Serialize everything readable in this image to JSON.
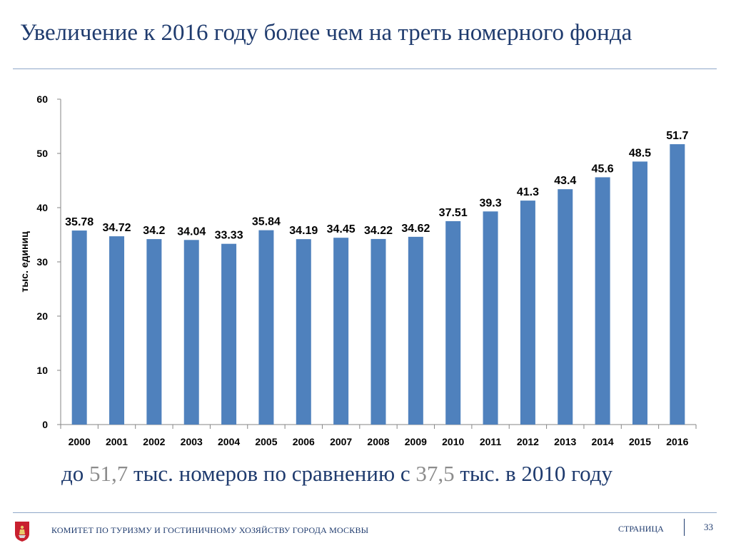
{
  "header": {
    "title": "Увеличение к 2016 году более чем на треть номерного фонда"
  },
  "chart_data": {
    "type": "bar",
    "ylabel": "тыс. единиц",
    "ylim": [
      0,
      60
    ],
    "yticks": [
      0,
      10,
      20,
      30,
      40,
      50,
      60
    ],
    "grid": false,
    "legend": "none",
    "bar_color": "#4F81BD",
    "categories": [
      "2000",
      "2001",
      "2002",
      "2003",
      "2004",
      "2005",
      "2006",
      "2007",
      "2008",
      "2009",
      "2010",
      "2011",
      "2012",
      "2013",
      "2014",
      "2015",
      "2016"
    ],
    "values": [
      35.78,
      34.72,
      34.2,
      34.04,
      33.33,
      35.84,
      34.19,
      34.45,
      34.22,
      34.62,
      37.51,
      39.3,
      41.3,
      43.4,
      45.6,
      48.5,
      51.7
    ],
    "value_labels": [
      "35.78",
      "34.72",
      "34.2",
      "34.04",
      "33.33",
      "35.84",
      "34.19",
      "34.45",
      "34.22",
      "34.62",
      "37.51",
      "39.3",
      "41.3",
      "43.4",
      "45.6",
      "48.5",
      "51.7"
    ]
  },
  "summary": {
    "prefix": "до ",
    "value_now": "51,7",
    "middle": " тыс. номеров по сравнению с ",
    "value_then": "37,5",
    "suffix": " тыс. в 2010 году",
    "highlight_color": "#8C8C8C"
  },
  "footer": {
    "logo_icon": "moscow-coat-of-arms-icon",
    "organization": "КОМИТЕТ ПО ТУРИЗМУ И ГОСТИНИЧНОМУ ХОЗЯЙСТВУ ГОРОДА МОСКВЫ",
    "page_label": "СТРАНИЦА",
    "page_number": "33"
  }
}
